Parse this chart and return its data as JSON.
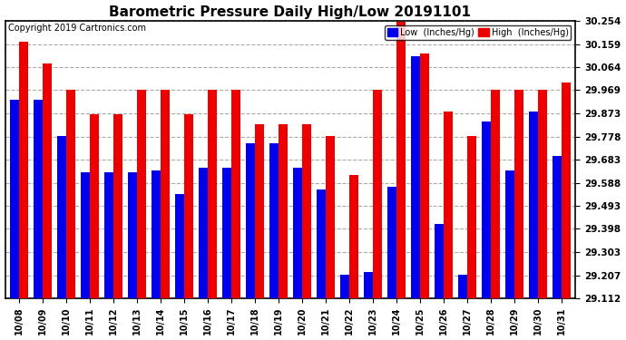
{
  "title": "Barometric Pressure Daily High/Low 20191101",
  "copyright": "Copyright 2019 Cartronics.com",
  "dates": [
    "10/08",
    "10/09",
    "10/10",
    "10/11",
    "10/12",
    "10/13",
    "10/14",
    "10/15",
    "10/16",
    "10/17",
    "10/18",
    "10/19",
    "10/20",
    "10/21",
    "10/22",
    "10/23",
    "10/24",
    "10/25",
    "10/26",
    "10/27",
    "10/28",
    "10/29",
    "10/30",
    "10/31"
  ],
  "high": [
    30.17,
    30.08,
    29.97,
    29.87,
    29.87,
    29.97,
    29.97,
    29.87,
    29.97,
    29.97,
    29.83,
    29.83,
    29.83,
    29.78,
    29.62,
    29.97,
    30.25,
    30.12,
    29.88,
    29.78,
    29.97,
    29.97,
    29.97,
    30.0
  ],
  "low": [
    29.93,
    29.93,
    29.78,
    29.63,
    29.63,
    29.63,
    29.64,
    29.54,
    29.65,
    29.65,
    29.75,
    29.75,
    29.65,
    29.56,
    29.21,
    29.22,
    29.57,
    30.11,
    29.42,
    29.21,
    29.84,
    29.64,
    29.88,
    29.7
  ],
  "ymin": 29.112,
  "ymax": 30.254,
  "yticks": [
    29.112,
    29.207,
    29.303,
    29.398,
    29.493,
    29.588,
    29.683,
    29.778,
    29.873,
    29.969,
    30.064,
    30.159,
    30.254
  ],
  "bar_width": 0.38,
  "low_color": "#0000ee",
  "high_color": "#ee0000",
  "bg_color": "#ffffff",
  "grid_color": "#aaaaaa",
  "title_fontsize": 11,
  "copyright_fontsize": 7
}
